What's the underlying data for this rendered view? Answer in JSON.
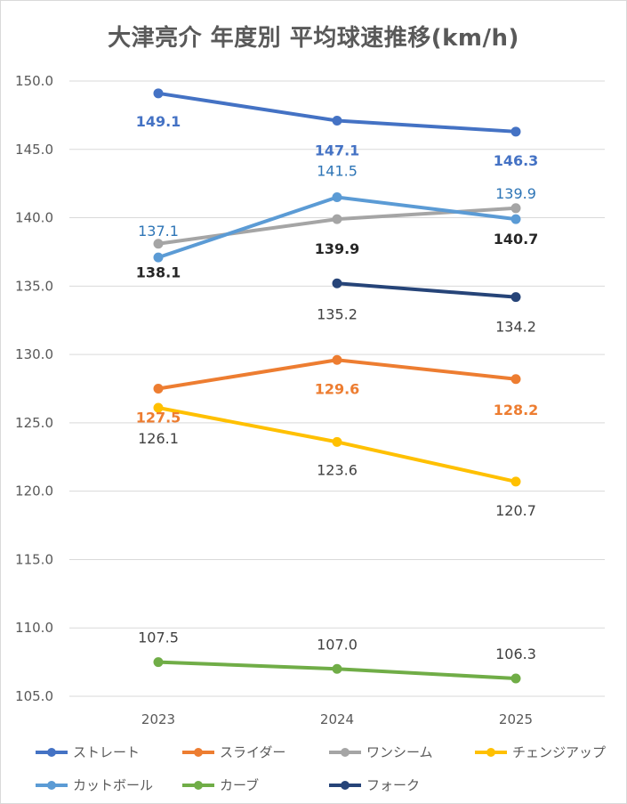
{
  "chart_data": {
    "type": "line",
    "title": "大津亮介 年度別 平均球速推移(km/h)",
    "xlabel": "",
    "ylabel": "",
    "categories": [
      "2023",
      "2024",
      "2025"
    ],
    "ylim": [
      105.0,
      150.0
    ],
    "yticks": [
      "150.0",
      "145.0",
      "140.0",
      "135.0",
      "130.0",
      "125.0",
      "120.0",
      "115.0",
      "110.0",
      "105.0"
    ],
    "grid": true,
    "legend_position": "bottom",
    "series": [
      {
        "name": "ストレート",
        "color": "#4472c4",
        "values": [
          149.1,
          147.1,
          146.3
        ],
        "labels": [
          "149.1",
          "147.1",
          "146.3"
        ],
        "label_color": "#4472c4"
      },
      {
        "name": "スライダー",
        "color": "#ed7d31",
        "values": [
          127.5,
          129.6,
          128.2
        ],
        "labels": [
          "127.5",
          "129.6",
          "128.2"
        ],
        "label_color": "#ed7d31"
      },
      {
        "name": "ワンシーム",
        "color": "#a5a5a5",
        "values": [
          138.1,
          139.9,
          140.7
        ],
        "labels": [
          "138.1",
          "139.9",
          "140.7"
        ],
        "label_color": "#262626"
      },
      {
        "name": "チェンジアップ",
        "color": "#ffc000",
        "values": [
          126.1,
          123.6,
          120.7
        ],
        "labels": [
          "126.1",
          "123.6",
          "120.7"
        ],
        "label_color": "#404040"
      },
      {
        "name": "カットボール",
        "color": "#5b9bd5",
        "values": [
          137.1,
          141.5,
          139.9
        ],
        "labels": [
          "137.1",
          "141.5",
          "139.9"
        ],
        "label_color": "#2e75b6"
      },
      {
        "name": "カーブ",
        "color": "#70ad47",
        "values": [
          107.5,
          107.0,
          106.3
        ],
        "labels": [
          "107.5",
          "107.0",
          "106.3"
        ],
        "label_color": "#404040"
      },
      {
        "name": "フォーク",
        "color": "#264478",
        "values": [
          null,
          135.2,
          134.2
        ],
        "labels": [
          null,
          "135.2",
          "134.2"
        ],
        "label_color": "#404040"
      }
    ]
  }
}
